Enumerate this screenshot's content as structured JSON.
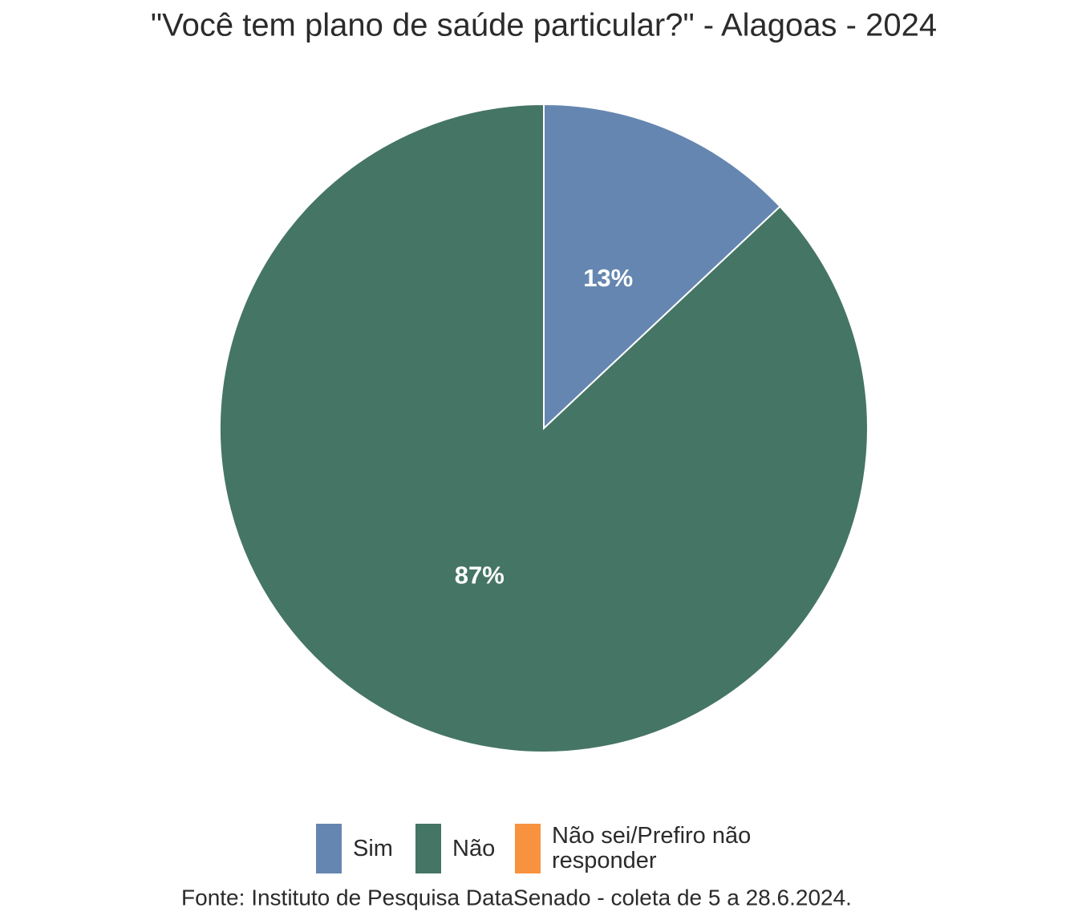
{
  "chart_data": {
    "type": "pie",
    "title": "\"Você tem plano de saúde particular?\" - Alagoas - 2024",
    "categories": [
      "Sim",
      "Não",
      "Não sei/Prefiro não responder"
    ],
    "values": [
      13,
      87,
      0
    ],
    "value_labels": [
      "13%",
      "87%",
      null
    ],
    "colors": [
      "#6586b0",
      "#457565",
      "#f7923f"
    ],
    "source": "Fonte: Instituto de Pesquisa DataSenado - coleta de 5 a 28.6.2024."
  }
}
